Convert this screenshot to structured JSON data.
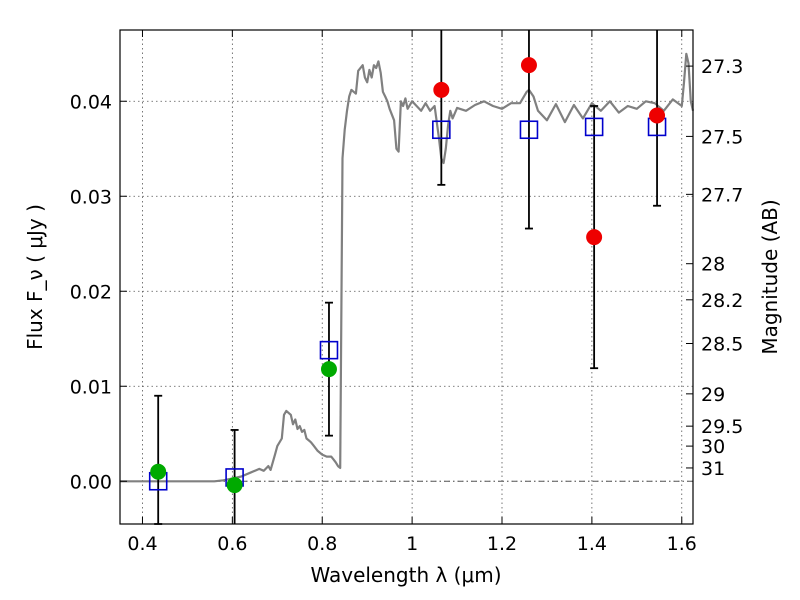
{
  "chart_data": {
    "type": "scatter",
    "xlabel": "Wavelength  λ (μm)",
    "ylabel": "Flux  F_ν  ( μJy )",
    "ylabel_right": "Magnitude (AB)",
    "xlim": [
      0.35,
      1.625
    ],
    "ylim": [
      -0.0045,
      0.0475
    ],
    "grid": true,
    "x_ticks": [
      0.4,
      0.6,
      0.8,
      1.0,
      1.2,
      1.4,
      1.6
    ],
    "x_tick_labels": [
      "0.4",
      "0.6",
      "0.8",
      "1",
      "1.2",
      "1.4",
      "1.6"
    ],
    "y_ticks": [
      0.0,
      0.01,
      0.02,
      0.03,
      0.04
    ],
    "y_tick_labels": [
      "0.00",
      "0.01",
      "0.02",
      "0.03",
      "0.04"
    ],
    "right_ticks": [
      {
        "label": "27.3",
        "flux": 0.0437
      },
      {
        "label": "27.5",
        "flux": 0.0363
      },
      {
        "label": "27.7",
        "flux": 0.0302
      },
      {
        "label": "28",
        "flux": 0.0229
      },
      {
        "label": "28.2",
        "flux": 0.0191
      },
      {
        "label": "28.5",
        "flux": 0.0145
      },
      {
        "label": "29",
        "flux": 0.0092
      },
      {
        "label": "29.5",
        "flux": 0.0058
      },
      {
        "label": "30",
        "flux": 0.0037
      },
      {
        "label": "31",
        "flux": 0.0014
      }
    ],
    "series": [
      {
        "kind": "line",
        "color": "#808080",
        "x": [
          0.35,
          0.56,
          0.58,
          0.6,
          0.62,
          0.64,
          0.66,
          0.67,
          0.68,
          0.685,
          0.695,
          0.7,
          0.71,
          0.715,
          0.72,
          0.73,
          0.735,
          0.74,
          0.745,
          0.75,
          0.755,
          0.76,
          0.765,
          0.77,
          0.775,
          0.78,
          0.79,
          0.8,
          0.81,
          0.82,
          0.825,
          0.83,
          0.835,
          0.84,
          0.845,
          0.85,
          0.855,
          0.86,
          0.865,
          0.87,
          0.875,
          0.88,
          0.89,
          0.895,
          0.9,
          0.905,
          0.91,
          0.915,
          0.92,
          0.925,
          0.93,
          0.935,
          0.94,
          0.945,
          0.95,
          0.96,
          0.965,
          0.97,
          0.975,
          0.98,
          0.985,
          0.99,
          1.0,
          1.01,
          1.02,
          1.03,
          1.04,
          1.05,
          1.06,
          1.065,
          1.07,
          1.075,
          1.08,
          1.085,
          1.09,
          1.1,
          1.12,
          1.14,
          1.16,
          1.18,
          1.2,
          1.22,
          1.24,
          1.255,
          1.26,
          1.27,
          1.28,
          1.3,
          1.32,
          1.34,
          1.36,
          1.38,
          1.4,
          1.42,
          1.44,
          1.46,
          1.48,
          1.5,
          1.52,
          1.54,
          1.56,
          1.58,
          1.6,
          1.605,
          1.61,
          1.615,
          1.62,
          1.625
        ],
        "y": [
          0.0,
          0.0,
          0.0001,
          0.0003,
          0.0005,
          0.0009,
          0.0013,
          0.0011,
          0.0016,
          0.0012,
          0.0028,
          0.0037,
          0.0045,
          0.007,
          0.0074,
          0.007,
          0.006,
          0.0065,
          0.0055,
          0.0058,
          0.0052,
          0.0054,
          0.0045,
          0.0043,
          0.0041,
          0.0038,
          0.0032,
          0.0028,
          0.0026,
          0.0026,
          0.0023,
          0.002,
          0.0016,
          0.0014,
          0.034,
          0.037,
          0.039,
          0.0405,
          0.0412,
          0.041,
          0.0408,
          0.0432,
          0.0438,
          0.0425,
          0.042,
          0.0433,
          0.0425,
          0.0438,
          0.0435,
          0.0442,
          0.043,
          0.041,
          0.0405,
          0.04,
          0.0392,
          0.038,
          0.035,
          0.0347,
          0.04,
          0.0395,
          0.0403,
          0.0392,
          0.04,
          0.0395,
          0.039,
          0.0398,
          0.039,
          0.0395,
          0.036,
          0.034,
          0.0335,
          0.035,
          0.0375,
          0.039,
          0.0382,
          0.0393,
          0.039,
          0.0396,
          0.04,
          0.0395,
          0.0392,
          0.0398,
          0.0398,
          0.041,
          0.0412,
          0.0405,
          0.039,
          0.038,
          0.0397,
          0.0378,
          0.0396,
          0.0382,
          0.0398,
          0.039,
          0.04,
          0.0388,
          0.0395,
          0.0392,
          0.04,
          0.0398,
          0.039,
          0.0402,
          0.0395,
          0.042,
          0.045,
          0.044,
          0.04,
          0.039
        ]
      },
      {
        "kind": "model",
        "marker": "open-square",
        "color": "#0000cc",
        "x": [
          0.435,
          0.605,
          0.815,
          1.065,
          1.26,
          1.405,
          1.545
        ],
        "y": [
          0.0,
          0.0004,
          0.0138,
          0.037,
          0.037,
          0.0373,
          0.0373
        ]
      },
      {
        "kind": "observed",
        "marker": "circle",
        "color": "#00aa00",
        "x": [
          0.435,
          0.605,
          0.815
        ],
        "y": [
          0.001,
          -0.0004,
          0.0118
        ],
        "yerr_low": [
          0.0055,
          0.0047,
          0.007
        ],
        "yerr_high": [
          0.008,
          0.0058,
          0.007
        ]
      },
      {
        "kind": "observed",
        "marker": "circle",
        "color": "#ee0000",
        "x": [
          1.065,
          1.26,
          1.405,
          1.545
        ],
        "y": [
          0.0412,
          0.0438,
          0.0257,
          0.0385
        ],
        "yerr_low": [
          0.01,
          0.0172,
          0.0138,
          0.0095
        ],
        "yerr_high": [
          0.01,
          0.01,
          0.0138,
          0.01
        ]
      }
    ],
    "reference_line": {
      "y": 0.0,
      "style": "dash-dot",
      "color": "#555555"
    }
  }
}
